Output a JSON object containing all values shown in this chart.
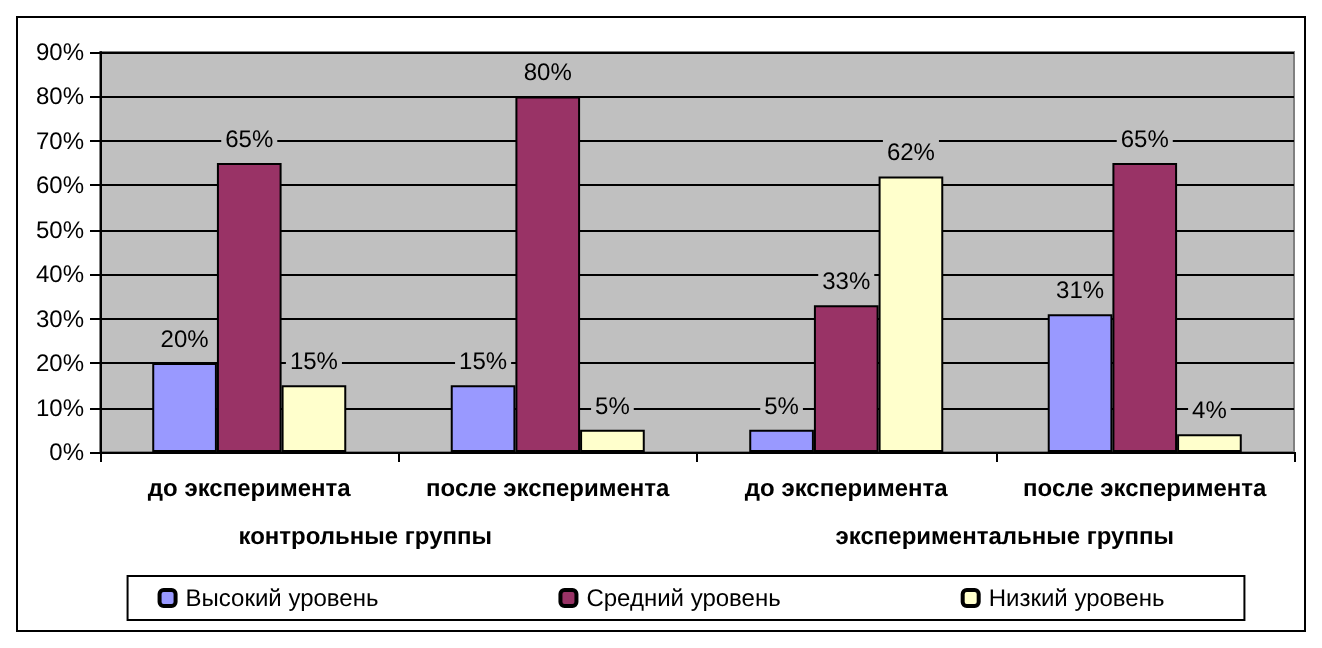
{
  "chart_data": {
    "type": "bar",
    "categories": [
      "до эксперимента",
      "после эксперимента",
      "до эксперимента",
      "после эксперимента"
    ],
    "annotations": [
      "контрольные группы",
      "экспериментальные группы"
    ],
    "series": [
      {
        "name": "Высокий уровень",
        "color": "#9999ff",
        "values": [
          20,
          15,
          5,
          31
        ],
        "value_labels": [
          "20%",
          "15%",
          "5%",
          "31%"
        ]
      },
      {
        "name": "Средний уровень",
        "color": "#993366",
        "values": [
          65,
          80,
          33,
          65
        ],
        "value_labels": [
          "65%",
          "80%",
          "33%",
          "65%"
        ]
      },
      {
        "name": "Низкий уровень",
        "color": "#ffffcc",
        "values": [
          15,
          5,
          62,
          4
        ],
        "value_labels": [
          "15%",
          "5%",
          "62%",
          "4%"
        ]
      }
    ],
    "ylim": [
      0,
      90
    ],
    "yticks": [
      {
        "value": 0,
        "label": "0%"
      },
      {
        "value": 10,
        "label": "10%"
      },
      {
        "value": 20,
        "label": "20%"
      },
      {
        "value": 30,
        "label": "30%"
      },
      {
        "value": 40,
        "label": "40%"
      },
      {
        "value": 50,
        "label": "50%"
      },
      {
        "value": 60,
        "label": "60%"
      },
      {
        "value": 70,
        "label": "70%"
      },
      {
        "value": 80,
        "label": "80%"
      },
      {
        "value": 90,
        "label": "90%"
      }
    ],
    "grid": "y",
    "legend": "bottom"
  }
}
